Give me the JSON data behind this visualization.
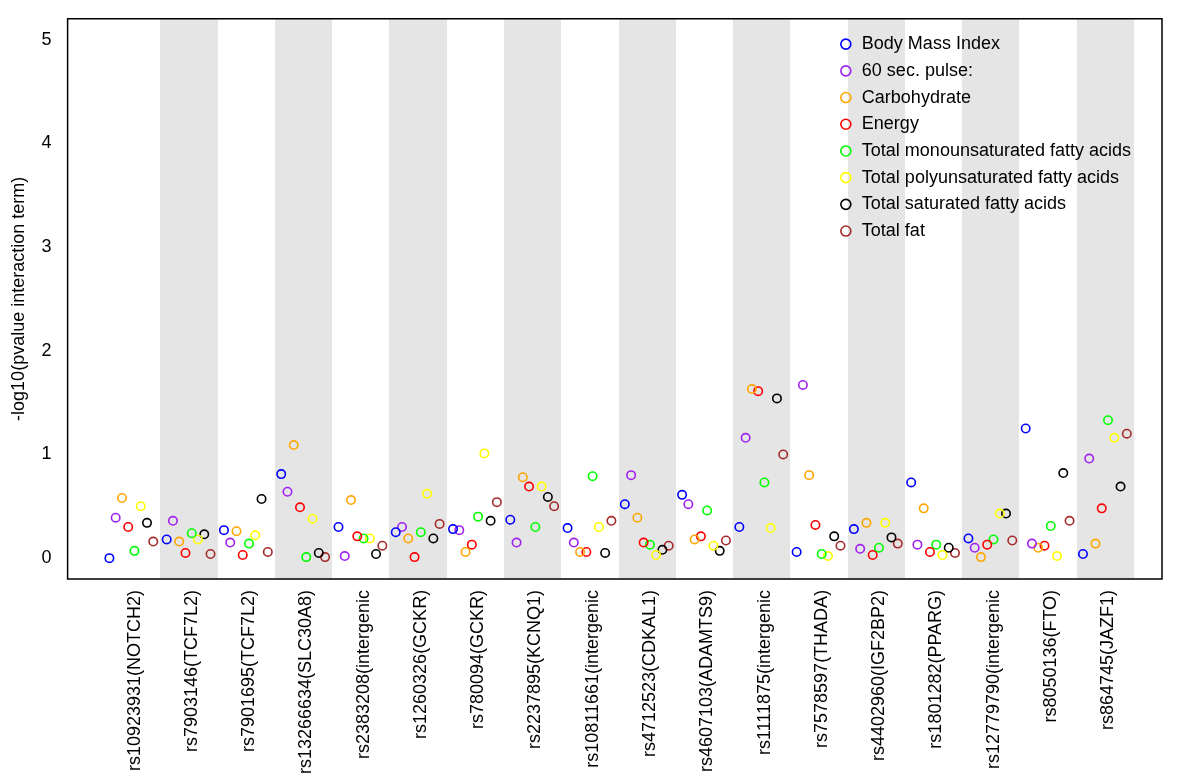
{
  "chart_data": {
    "type": "scatter",
    "ylabel": "-log10(pvalue interaction term)",
    "categories": [
      "rs10923931(NOTCH2)",
      "rs7903146(TCF7L2)",
      "rs7901695(TCF7L2)",
      "rs13266634(SLC30A8)",
      "rs2383208(intergenic",
      "rs1260326(GCKR)",
      "rs780094(GCKR)",
      "rs2237895(KCNQ1)",
      "rs10811661(intergenic",
      "rs4712523(CDKAL1)",
      "rs4607103(ADAMTS9)",
      "rs1111875(intergenic",
      "rs7578597(THADA)",
      "rs4402960(IGF2BP2)",
      "rs1801282(PPARG)",
      "rs12779790(intergenic",
      "rs8050136(FTO)",
      "rs864745(JAZF1)"
    ],
    "series": [
      {
        "name": "Body Mass Index",
        "color": "#0000ff",
        "values": [
          0.0,
          0.18,
          0.27,
          0.81,
          0.3,
          0.25,
          0.28,
          0.37,
          0.29,
          0.52,
          0.61,
          0.3,
          0.06,
          0.28,
          0.73,
          0.19,
          1.25,
          0.04
        ]
      },
      {
        "name": "60 sec. pulse:",
        "color": "#a020f0",
        "values": [
          0.39,
          0.36,
          0.15,
          0.64,
          0.02,
          0.3,
          0.27,
          0.15,
          0.15,
          0.8,
          0.52,
          1.16,
          1.67,
          0.09,
          0.13,
          0.1,
          0.14,
          0.96
        ]
      },
      {
        "name": "Carbohydrate",
        "color": "#ffa500",
        "values": [
          0.58,
          0.16,
          0.26,
          1.09,
          0.56,
          0.19,
          0.06,
          0.78,
          0.06,
          0.39,
          0.18,
          1.63,
          0.8,
          0.34,
          0.48,
          0.01,
          0.1,
          0.14
        ]
      },
      {
        "name": "Energy",
        "color": "#ff0000",
        "values": [
          0.3,
          0.05,
          0.03,
          0.49,
          0.21,
          0.01,
          0.13,
          0.69,
          0.06,
          0.15,
          0.21,
          1.61,
          0.32,
          0.03,
          0.06,
          0.13,
          0.12,
          0.48
        ]
      },
      {
        "name": "Total monounsaturated fatty acids",
        "color": "#00ff00",
        "values": [
          0.07,
          0.24,
          0.14,
          0.01,
          0.19,
          0.25,
          0.4,
          0.3,
          0.79,
          0.13,
          0.46,
          0.73,
          0.04,
          0.1,
          0.13,
          0.18,
          0.31,
          1.33
        ]
      },
      {
        "name": "Total polyunsaturated fatty acids",
        "color": "#ffff00",
        "values": [
          0.5,
          0.18,
          0.22,
          0.38,
          0.19,
          0.62,
          1.01,
          0.69,
          0.3,
          0.03,
          0.12,
          0.29,
          0.02,
          0.34,
          0.03,
          0.43,
          0.02,
          1.16
        ]
      },
      {
        "name": "Total saturated fatty acids",
        "color": "#000000",
        "values": [
          0.34,
          0.23,
          0.57,
          0.05,
          0.04,
          0.19,
          0.36,
          0.59,
          0.05,
          0.08,
          0.07,
          1.54,
          0.21,
          0.2,
          0.1,
          0.43,
          0.82,
          0.69
        ]
      },
      {
        "name": "Total fat",
        "color": "#a52a2a",
        "values": [
          0.16,
          0.04,
          0.06,
          0.01,
          0.12,
          0.33,
          0.54,
          0.5,
          0.36,
          0.12,
          0.17,
          1.0,
          0.12,
          0.14,
          0.05,
          0.17,
          0.36,
          1.2
        ]
      }
    ],
    "ylim": [
      -0.2,
      5.2
    ],
    "yticks": [
      0,
      1,
      2,
      3,
      4,
      5
    ],
    "legend": "top right",
    "marker": "circle"
  }
}
